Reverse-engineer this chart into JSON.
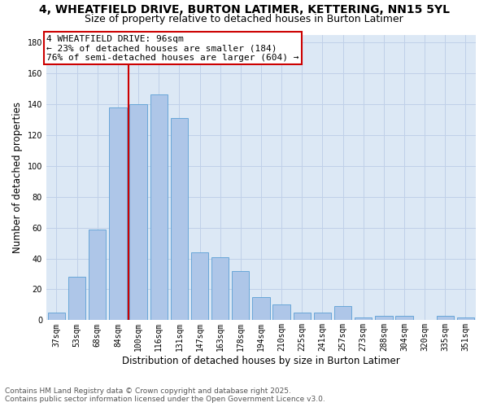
{
  "title": "4, WHEATFIELD DRIVE, BURTON LATIMER, KETTERING, NN15 5YL",
  "subtitle": "Size of property relative to detached houses in Burton Latimer",
  "xlabel": "Distribution of detached houses by size in Burton Latimer",
  "ylabel": "Number of detached properties",
  "categories": [
    "37sqm",
    "53sqm",
    "68sqm",
    "84sqm",
    "100sqm",
    "116sqm",
    "131sqm",
    "147sqm",
    "163sqm",
    "178sqm",
    "194sqm",
    "210sqm",
    "225sqm",
    "241sqm",
    "257sqm",
    "273sqm",
    "288sqm",
    "304sqm",
    "320sqm",
    "335sqm",
    "351sqm"
  ],
  "values": [
    5,
    28,
    59,
    138,
    140,
    146,
    131,
    44,
    41,
    32,
    15,
    10,
    5,
    5,
    9,
    2,
    3,
    3,
    0,
    3,
    2
  ],
  "bar_color": "#aec6e8",
  "bar_edge_color": "#5a9fd4",
  "vline_index": 4,
  "vline_color": "#cc0000",
  "annotation_line1": "4 WHEATFIELD DRIVE: 96sqm",
  "annotation_line2": "← 23% of detached houses are smaller (184)",
  "annotation_line3": "76% of semi-detached houses are larger (604) →",
  "annotation_box_color": "#ffffff",
  "annotation_box_edge": "#cc0000",
  "ylim": [
    0,
    185
  ],
  "yticks": [
    0,
    20,
    40,
    60,
    80,
    100,
    120,
    140,
    160,
    180
  ],
  "grid_color": "#c0d0e8",
  "background_color": "#dce8f5",
  "footer_line1": "Contains HM Land Registry data © Crown copyright and database right 2025.",
  "footer_line2": "Contains public sector information licensed under the Open Government Licence v3.0.",
  "title_fontsize": 10,
  "subtitle_fontsize": 9,
  "xlabel_fontsize": 8.5,
  "ylabel_fontsize": 8.5,
  "tick_fontsize": 7,
  "annotation_fontsize": 8,
  "footer_fontsize": 6.5
}
